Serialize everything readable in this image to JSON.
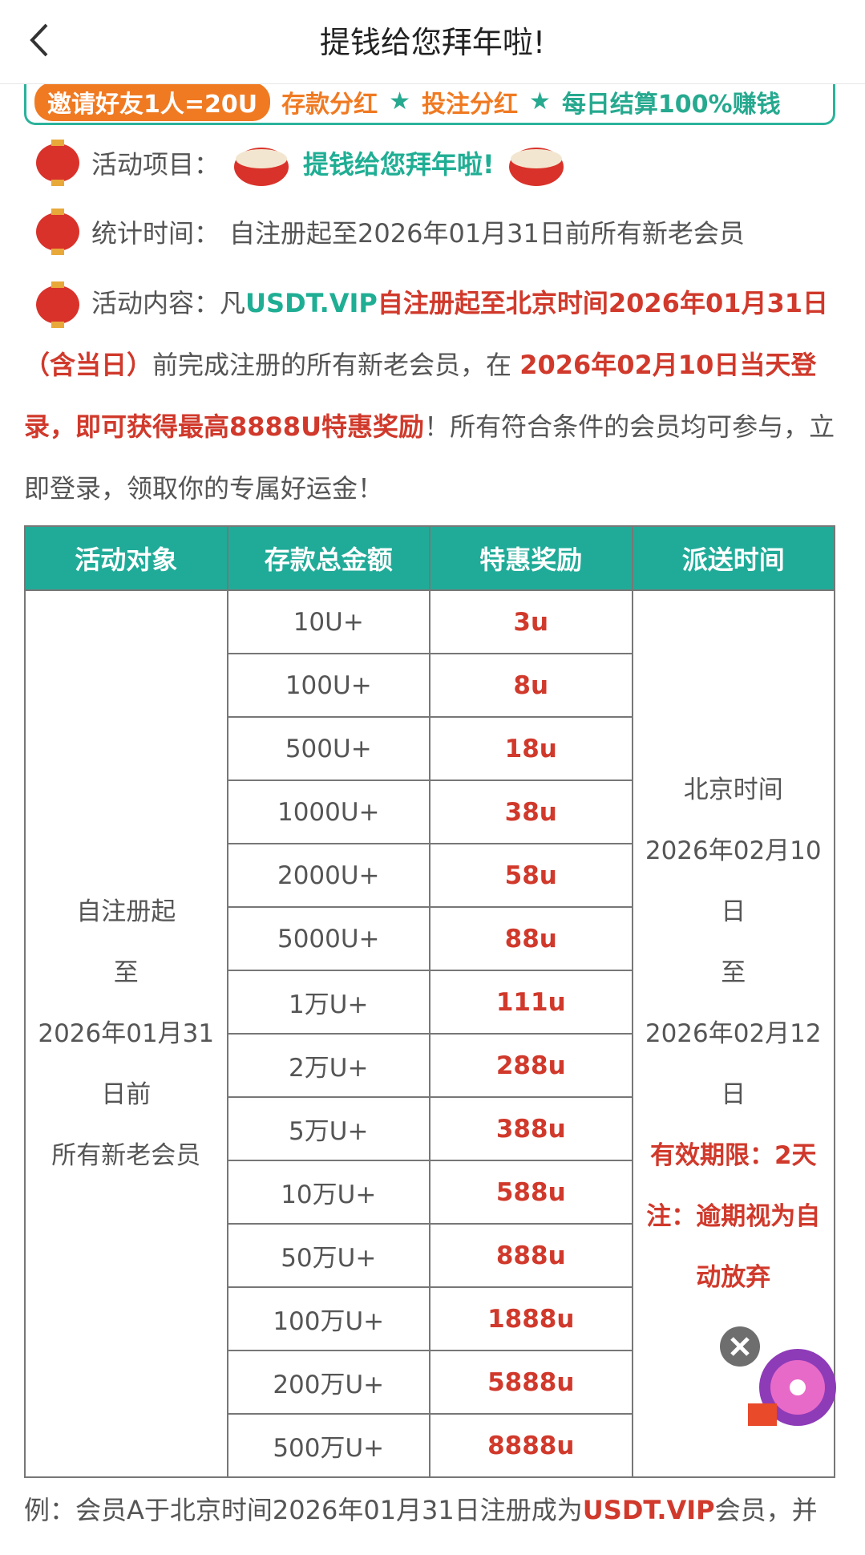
{
  "header": {
    "title": "提钱给您拜年啦!"
  },
  "banner": [
    "邀请好友1人=20U",
    "存款分红",
    "★",
    "投注分红",
    "★",
    "每日结算100%赚钱"
  ],
  "items": [
    {
      "label": "活动项目：",
      "value": "提钱给您拜年啦!"
    },
    {
      "label": "统计时间：",
      "value": "自注册起至2026年01月31日前所有新老会员"
    }
  ],
  "content": {
    "label": "活动内容：",
    "segments": [
      "凡",
      "USDT.VIP",
      "自注册起至北京时间2026年01月31日（含当日）",
      "前完成注册的所有新老会员，在 ",
      "2026年02月10日当天登录，即可获得最高8888U特惠奖励",
      "！所有符合条件的会员均可参与，立即登录，领取你的专属好运金！"
    ]
  },
  "table": {
    "headers": [
      "活动对象",
      "存款总金额",
      "特惠奖励",
      "派送时间"
    ],
    "target": [
      "自注册起",
      "至",
      "2026年01月31日前",
      "所有新老会员"
    ],
    "time": [
      "北京时间",
      "2026年02月10日",
      "至",
      "2026年02月12日",
      "有效期限：2天",
      "注：逾期视为自动放弃"
    ],
    "rows": [
      [
        "10U+",
        "3u"
      ],
      [
        "100U+",
        "8u"
      ],
      [
        "500U+",
        "18u"
      ],
      [
        "1000U+",
        "38u"
      ],
      [
        "2000U+",
        "58u"
      ],
      [
        "5000U+",
        "88u"
      ],
      [
        "1万U+",
        "111u"
      ],
      [
        "2万U+",
        "288u"
      ],
      [
        "5万U+",
        "388u"
      ],
      [
        "10万U+",
        "588u"
      ],
      [
        "50万U+",
        "888u"
      ],
      [
        "100万U+",
        "1888u"
      ],
      [
        "200万U+",
        "5888u"
      ],
      [
        "500万U+",
        "8888u"
      ]
    ]
  },
  "footer": [
    "例：会员A于北京时间2026年01月31日注册成为",
    "USDT.VIP",
    "会员，并"
  ]
}
